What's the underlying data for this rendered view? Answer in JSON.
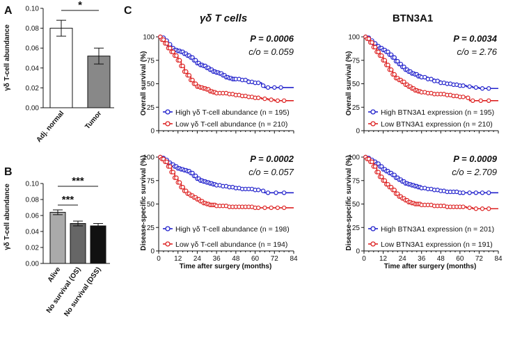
{
  "panel_labels": {
    "a": "A",
    "b": "B",
    "c": "C"
  },
  "colors": {
    "high": "#2222cc",
    "low": "#dd2222",
    "bar_a_normal": "#ffffff",
    "bar_a_tumor": "#888888",
    "bar_b": [
      "#aaaaaa",
      "#666666",
      "#111111"
    ]
  },
  "chart_data": [
    {
      "id": "A",
      "type": "bar",
      "ylabel": "γδ T-cell abundance",
      "categories": [
        "Adj. normal",
        "Tumor"
      ],
      "values": [
        0.08,
        0.052
      ],
      "errors": [
        0.008,
        0.008
      ],
      "ylim": [
        0,
        0.1
      ],
      "yticks": [
        "0.00",
        "0.02",
        "0.04",
        "0.06",
        "0.08",
        "0.10"
      ],
      "significance": [
        {
          "pair": [
            0,
            1
          ],
          "label": "*"
        }
      ]
    },
    {
      "id": "B",
      "type": "bar",
      "ylabel": "γδ T-cell abundance",
      "categories": [
        "Alive",
        "No survival (OS)",
        "No survival (DSS)"
      ],
      "values": [
        0.064,
        0.05,
        0.047
      ],
      "errors": [
        0.003,
        0.003,
        0.003
      ],
      "ylim": [
        0,
        0.1
      ],
      "yticks": [
        "0.00",
        "0.02",
        "0.04",
        "0.06",
        "0.08",
        "0.10"
      ],
      "significance": [
        {
          "pair": [
            0,
            1
          ],
          "label": "***"
        },
        {
          "pair": [
            0,
            2
          ],
          "label": "***"
        }
      ]
    },
    {
      "id": "C1",
      "type": "line",
      "subtype": "kaplan-meier",
      "column_title": "γδ T cells",
      "ylabel": "Overall survival (%)",
      "xlabel": "",
      "xlim": [
        0,
        84
      ],
      "ylim": [
        0,
        100
      ],
      "p_value": "P = 0.0006",
      "cutoff": "c/o = 0.059",
      "series": [
        {
          "name": "High γδ T-cell abundance (n = 195)",
          "x": [
            0,
            2,
            4,
            6,
            8,
            10,
            12,
            14,
            16,
            18,
            20,
            22,
            24,
            26,
            28,
            30,
            32,
            34,
            36,
            38,
            40,
            42,
            44,
            46,
            48,
            52,
            56,
            60,
            64,
            66,
            70,
            74,
            78,
            84
          ],
          "y": [
            100,
            99,
            96,
            92,
            88,
            86,
            85,
            84,
            82,
            80,
            78,
            75,
            72,
            70,
            69,
            67,
            65,
            63,
            62,
            61,
            59,
            57,
            56,
            55,
            55,
            54,
            52,
            51,
            48,
            46,
            46,
            46,
            46,
            46
          ]
        },
        {
          "name": "Low γδ T-cell abundance (n = 210)",
          "x": [
            0,
            2,
            4,
            6,
            8,
            10,
            12,
            14,
            16,
            18,
            20,
            22,
            24,
            26,
            28,
            30,
            32,
            34,
            36,
            40,
            44,
            48,
            52,
            56,
            60,
            64,
            68,
            72,
            76,
            80,
            84
          ],
          "y": [
            100,
            97,
            93,
            88,
            84,
            80,
            75,
            69,
            63,
            59,
            54,
            50,
            47,
            46,
            45,
            44,
            42,
            41,
            40,
            40,
            39,
            38,
            37,
            36,
            35,
            34,
            33,
            32,
            32,
            32,
            32
          ]
        }
      ]
    },
    {
      "id": "C2",
      "type": "line",
      "subtype": "kaplan-meier",
      "column_title": "BTN3A1",
      "ylabel": "Overall survival (%)",
      "xlabel": "",
      "xlim": [
        0,
        84
      ],
      "ylim": [
        0,
        100
      ],
      "p_value": "P = 0.0034",
      "cutoff": "c/o = 2.76",
      "series": [
        {
          "name": "High BTN3A1 expression (n = 195)",
          "x": [
            0,
            2,
            4,
            6,
            8,
            10,
            12,
            14,
            16,
            18,
            20,
            22,
            24,
            26,
            28,
            30,
            32,
            34,
            36,
            40,
            44,
            48,
            52,
            56,
            60,
            64,
            68,
            72,
            76,
            80,
            84
          ],
          "y": [
            100,
            99,
            96,
            93,
            90,
            88,
            86,
            84,
            81,
            78,
            74,
            71,
            68,
            65,
            63,
            61,
            60,
            58,
            57,
            55,
            53,
            51,
            50,
            49,
            48,
            47,
            46,
            45,
            45,
            45,
            45
          ]
        },
        {
          "name": "Low BTN3A1 expression (n = 210)",
          "x": [
            0,
            2,
            4,
            6,
            8,
            10,
            12,
            14,
            16,
            18,
            20,
            22,
            24,
            26,
            28,
            30,
            32,
            34,
            36,
            40,
            44,
            48,
            52,
            56,
            60,
            64,
            66,
            70,
            76,
            80,
            84
          ],
          "y": [
            100,
            98,
            94,
            89,
            84,
            80,
            75,
            70,
            65,
            60,
            56,
            54,
            52,
            49,
            47,
            45,
            43,
            42,
            41,
            40,
            39,
            39,
            38,
            37,
            36,
            35,
            32,
            32,
            32,
            32,
            32
          ]
        }
      ]
    },
    {
      "id": "C3",
      "type": "line",
      "subtype": "kaplan-meier",
      "ylabel": "Disease-specific survival (%)",
      "xlabel": "Time after surgery (months)",
      "xticks": [
        "0",
        "12",
        "24",
        "36",
        "48",
        "60",
        "72",
        "84"
      ],
      "xlim": [
        0,
        84
      ],
      "ylim": [
        0,
        100
      ],
      "p_value": "P = 0.0002",
      "cutoff": "c/o = 0.057",
      "series": [
        {
          "name": "High γδ T-cell abundance (n = 198)",
          "x": [
            0,
            2,
            4,
            6,
            8,
            10,
            12,
            14,
            16,
            18,
            20,
            22,
            24,
            26,
            28,
            30,
            32,
            34,
            36,
            40,
            44,
            48,
            52,
            56,
            60,
            64,
            66,
            70,
            76,
            80,
            84
          ],
          "y": [
            100,
            99,
            97,
            94,
            92,
            90,
            88,
            87,
            86,
            85,
            83,
            80,
            77,
            75,
            74,
            73,
            72,
            71,
            70,
            69,
            68,
            67,
            66,
            66,
            65,
            64,
            62,
            62,
            62,
            62,
            62
          ]
        },
        {
          "name": "Low γδ T-cell abundance (n = 194)",
          "x": [
            0,
            2,
            4,
            6,
            8,
            10,
            12,
            14,
            16,
            18,
            20,
            22,
            24,
            26,
            28,
            30,
            32,
            34,
            36,
            40,
            44,
            48,
            52,
            56,
            60,
            64,
            68,
            72,
            76,
            80,
            84
          ],
          "y": [
            100,
            98,
            95,
            90,
            84,
            78,
            73,
            68,
            64,
            61,
            59,
            57,
            55,
            53,
            51,
            50,
            49,
            49,
            48,
            48,
            47,
            47,
            47,
            47,
            46,
            46,
            46,
            46,
            46,
            46,
            46
          ]
        }
      ]
    },
    {
      "id": "C4",
      "type": "line",
      "subtype": "kaplan-meier",
      "ylabel": "Disease-specific survival (%)",
      "xlabel": "Time after surgery (months)",
      "xticks": [
        "0",
        "12",
        "24",
        "36",
        "48",
        "60",
        "72",
        "84"
      ],
      "xlim": [
        0,
        84
      ],
      "ylim": [
        0,
        100
      ],
      "p_value": "P = 0.0009",
      "cutoff": "c/o = 2.709",
      "series": [
        {
          "name": "High BTN3A1 expression (n = 201)",
          "x": [
            0,
            2,
            4,
            6,
            8,
            10,
            12,
            14,
            16,
            18,
            20,
            22,
            24,
            26,
            28,
            30,
            32,
            34,
            36,
            40,
            44,
            48,
            52,
            56,
            60,
            64,
            68,
            72,
            76,
            80,
            84
          ],
          "y": [
            100,
            99,
            97,
            95,
            93,
            90,
            87,
            85,
            83,
            81,
            78,
            76,
            74,
            72,
            71,
            70,
            69,
            68,
            67,
            66,
            65,
            64,
            63,
            63,
            62,
            62,
            62,
            62,
            62,
            62,
            62
          ]
        },
        {
          "name": "Low BTN3A1 expression (n = 191)",
          "x": [
            0,
            2,
            4,
            6,
            8,
            10,
            12,
            14,
            16,
            18,
            20,
            22,
            24,
            26,
            28,
            30,
            32,
            34,
            36,
            40,
            44,
            48,
            52,
            56,
            60,
            64,
            68,
            72,
            76,
            80,
            84
          ],
          "y": [
            100,
            98,
            95,
            90,
            84,
            79,
            75,
            71,
            68,
            65,
            61,
            58,
            56,
            54,
            52,
            51,
            50,
            50,
            49,
            49,
            48,
            48,
            47,
            47,
            47,
            46,
            45,
            45,
            45,
            45,
            45
          ]
        }
      ]
    }
  ],
  "yticks_km": [
    "0",
    "25",
    "50",
    "75",
    "100"
  ]
}
